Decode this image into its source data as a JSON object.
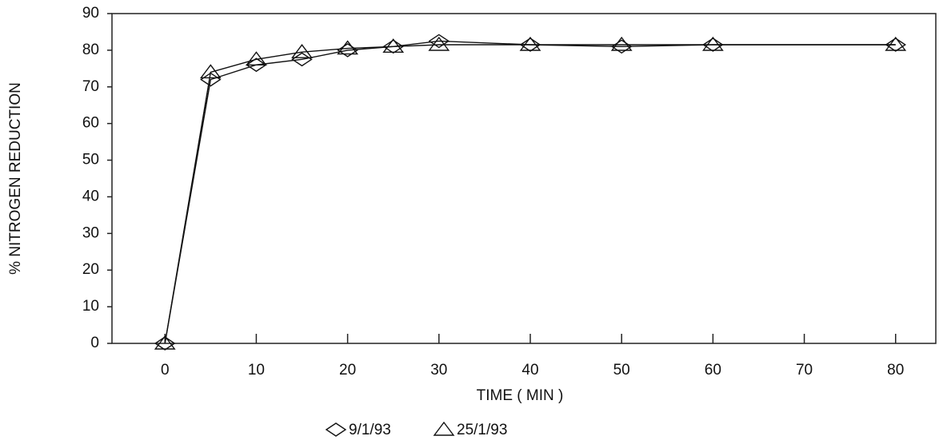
{
  "chart_data": {
    "type": "line",
    "x_label": "TIME ( MIN )",
    "y_label": "% NITROGEN REDUCTION",
    "x": [
      0,
      5,
      10,
      15,
      20,
      25,
      30,
      40,
      50,
      60,
      80
    ],
    "series": [
      {
        "name": "9/1/93",
        "marker": "diamond",
        "color": "#111111",
        "values": [
          0,
          72,
          76,
          77.5,
          80,
          81,
          82.5,
          81.5,
          81,
          81.5,
          81.5
        ]
      },
      {
        "name": "25/1/93",
        "marker": "triangle",
        "color": "#111111",
        "values": [
          0,
          74,
          77.5,
          79.5,
          80.5,
          81,
          81.5,
          81.5,
          81.5,
          81.5,
          81.5
        ]
      }
    ],
    "xlim": [
      -5.8,
      84.4
    ],
    "xticks": [
      0,
      10,
      20,
      30,
      40,
      50,
      60,
      70,
      80
    ],
    "ylim": [
      0,
      90
    ],
    "yticks": [
      0,
      10,
      20,
      30,
      40,
      50,
      60,
      70,
      80,
      90
    ],
    "grid": false
  }
}
